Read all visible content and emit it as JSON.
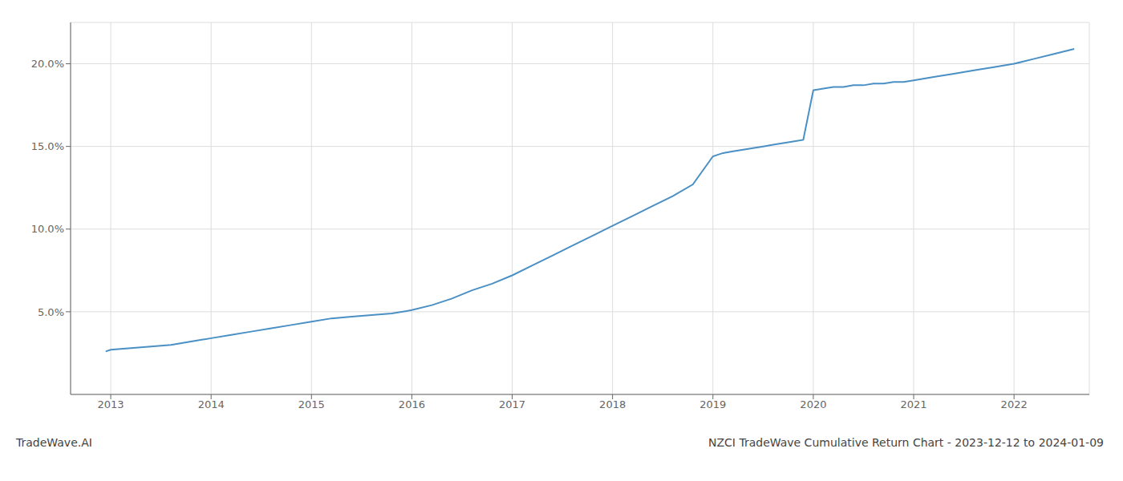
{
  "chart_data": {
    "type": "line",
    "title": "NZCI TradeWave Cumulative Return Chart - 2023-12-12 to 2024-01-09",
    "annotations": [
      "TradeWave.AI"
    ],
    "color": "#4a90c4",
    "grid": true,
    "x": [
      2012.95,
      2013.0,
      2013.2,
      2013.4,
      2013.6,
      2013.8,
      2014.0,
      2014.2,
      2014.4,
      2014.6,
      2014.8,
      2015.0,
      2015.2,
      2015.4,
      2015.6,
      2015.8,
      2016.0,
      2016.2,
      2016.4,
      2016.6,
      2016.8,
      2017.0,
      2017.2,
      2017.4,
      2017.6,
      2017.8,
      2018.0,
      2018.2,
      2018.4,
      2018.6,
      2018.8,
      2019.0,
      2019.1,
      2019.2,
      2019.3,
      2019.4,
      2019.5,
      2019.6,
      2019.7,
      2019.8,
      2019.9,
      2020.0,
      2020.1,
      2020.2,
      2020.3,
      2020.4,
      2020.5,
      2020.6,
      2020.7,
      2020.8,
      2020.9,
      2021.0,
      2021.2,
      2021.4,
      2021.6,
      2021.8,
      2022.0,
      2022.2,
      2022.4,
      2022.6
    ],
    "values": [
      0.026,
      0.027,
      0.028,
      0.029,
      0.03,
      0.032,
      0.034,
      0.036,
      0.038,
      0.04,
      0.042,
      0.044,
      0.046,
      0.047,
      0.048,
      0.049,
      0.051,
      0.054,
      0.058,
      0.063,
      0.067,
      0.072,
      0.078,
      0.084,
      0.09,
      0.096,
      0.102,
      0.108,
      0.114,
      0.12,
      0.127,
      0.144,
      0.146,
      0.147,
      0.148,
      0.149,
      0.15,
      0.151,
      0.152,
      0.153,
      0.154,
      0.184,
      0.185,
      0.186,
      0.186,
      0.187,
      0.187,
      0.188,
      0.188,
      0.189,
      0.189,
      0.19,
      0.192,
      0.194,
      0.196,
      0.198,
      0.2,
      0.203,
      0.206,
      0.209
    ],
    "xlim": [
      2012.6,
      2022.75
    ],
    "xticks": [
      2013,
      2014,
      2015,
      2016,
      2017,
      2018,
      2019,
      2020,
      2021,
      2022
    ],
    "ylim": [
      0.0,
      0.225
    ],
    "yticks": [
      {
        "value": 0.05,
        "label": "5.0%"
      },
      {
        "value": 0.1,
        "label": "10.0%"
      },
      {
        "value": 0.15,
        "label": "15.0%"
      },
      {
        "value": 0.2,
        "label": "20.0%"
      }
    ]
  }
}
